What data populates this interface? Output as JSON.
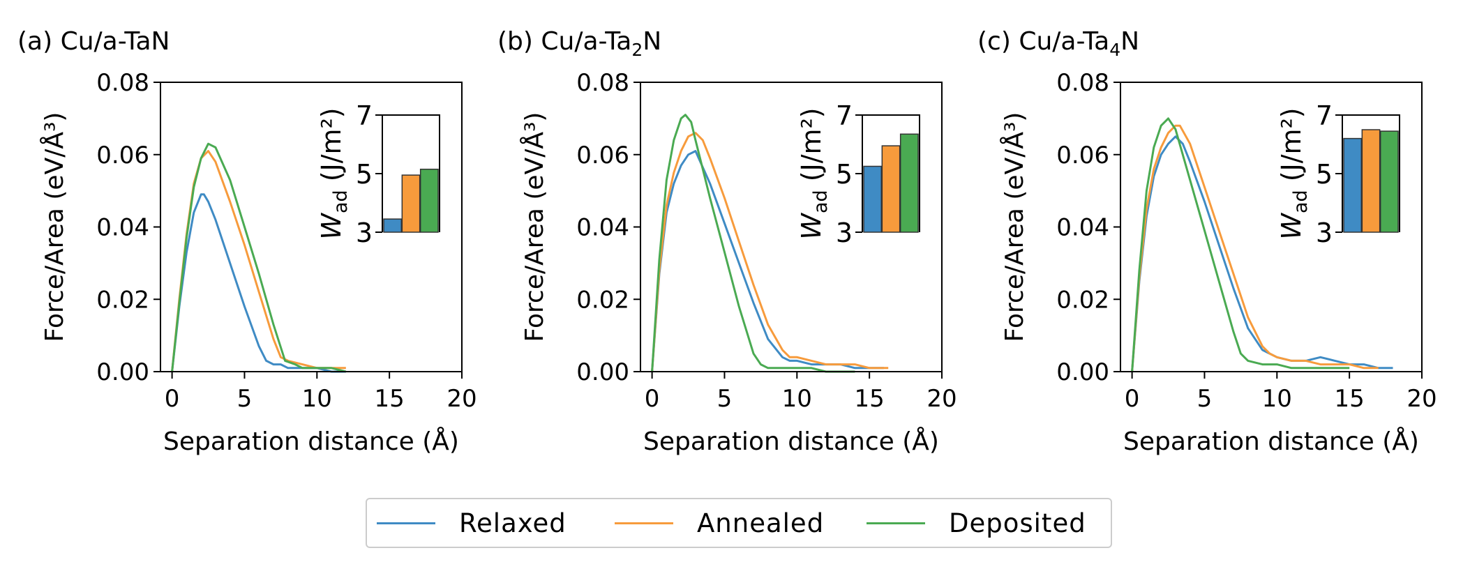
{
  "colors": {
    "relaxed": "#3f8bc4",
    "annealed": "#f79b3c",
    "deposited": "#4aaa52"
  },
  "legend": {
    "items": [
      {
        "label": "Relaxed",
        "color": "#3f8bc4"
      },
      {
        "label": "Annealed",
        "color": "#f79b3c"
      },
      {
        "label": "Deposited",
        "color": "#4aaa52"
      }
    ],
    "placement": "bottom-center"
  },
  "chart_data": [
    {
      "type": "line",
      "title": "(a) Cu/a-TaN",
      "title_parts": [
        "(a) Cu/a-TaN",
        ""
      ],
      "xlabel": "Separation distance (Å)",
      "ylabel": "Force/Area (eV/Å³)",
      "xlim": [
        -0.8,
        20
      ],
      "ylim": [
        0,
        0.08
      ],
      "xticks": [
        0,
        5,
        10,
        15,
        20
      ],
      "yticks": [
        0.0,
        0.02,
        0.04,
        0.06,
        0.08
      ],
      "ytick_labels": [
        "0.00",
        "0.02",
        "0.04",
        "0.06",
        "0.08"
      ],
      "series": [
        {
          "name": "Relaxed",
          "color": "#3f8bc4",
          "x": [
            0,
            0.5,
            1.0,
            1.5,
            2.0,
            2.2,
            2.5,
            3.0,
            4.0,
            5.0,
            6.0,
            6.5,
            7.0,
            7.5,
            8.0,
            9.0,
            10.0,
            11.0,
            12.0
          ],
          "y": [
            0.0,
            0.018,
            0.033,
            0.044,
            0.049,
            0.049,
            0.047,
            0.042,
            0.03,
            0.018,
            0.007,
            0.003,
            0.002,
            0.002,
            0.001,
            0.001,
            0.001,
            0.0,
            0.0
          ]
        },
        {
          "name": "Annealed",
          "color": "#f79b3c",
          "x": [
            0,
            0.5,
            1.0,
            1.5,
            2.0,
            2.5,
            3.0,
            4.0,
            5.0,
            6.0,
            7.0,
            7.5,
            8.0,
            9.0,
            10.0,
            11.0,
            12.0
          ],
          "y": [
            0.0,
            0.02,
            0.038,
            0.052,
            0.059,
            0.061,
            0.058,
            0.047,
            0.035,
            0.022,
            0.009,
            0.004,
            0.003,
            0.002,
            0.001,
            0.001,
            0.001
          ]
        },
        {
          "name": "Deposited",
          "color": "#4aaa52",
          "x": [
            0,
            0.5,
            1.0,
            1.5,
            2.0,
            2.5,
            3.0,
            4.0,
            5.0,
            6.0,
            7.0,
            7.8,
            8.5,
            9.0,
            10.0,
            11.0,
            12.0
          ],
          "y": [
            0.0,
            0.019,
            0.037,
            0.051,
            0.059,
            0.063,
            0.062,
            0.053,
            0.04,
            0.027,
            0.013,
            0.003,
            0.002,
            0.001,
            0.001,
            0.001,
            0.0
          ]
        }
      ],
      "inset": {
        "type": "bar",
        "ylabel_main": "W",
        "ylabel_sub": "ad",
        "ylabel_unit": " (J/m²)",
        "ylim": [
          3,
          7
        ],
        "yticks": [
          3,
          5,
          7
        ],
        "categories": [
          "Relaxed",
          "Annealed",
          "Deposited"
        ],
        "values": [
          3.45,
          4.95,
          5.15
        ]
      }
    },
    {
      "type": "line",
      "title": "(b) Cu/a-Ta",
      "title_parts": [
        "(b) Cu/a-Ta",
        "2",
        "N"
      ],
      "xlabel": "Separation distance (Å)",
      "ylabel": "Force/Area (eV/Å³)",
      "xlim": [
        -0.8,
        20
      ],
      "ylim": [
        0,
        0.08
      ],
      "xticks": [
        0,
        5,
        10,
        15,
        20
      ],
      "yticks": [
        0.0,
        0.02,
        0.04,
        0.06,
        0.08
      ],
      "ytick_labels": [
        "0.00",
        "0.02",
        "0.04",
        "0.06",
        "0.08"
      ],
      "series": [
        {
          "name": "Relaxed",
          "color": "#3f8bc4",
          "x": [
            0,
            0.5,
            1.0,
            1.5,
            2.0,
            2.5,
            3.0,
            4.0,
            5.0,
            6.0,
            7.0,
            8.0,
            9.0,
            9.5,
            10.0,
            11.0,
            12.0,
            13.0,
            14.0,
            15.0,
            16.0
          ],
          "y": [
            0.0,
            0.027,
            0.044,
            0.052,
            0.057,
            0.06,
            0.061,
            0.052,
            0.041,
            0.03,
            0.019,
            0.009,
            0.004,
            0.003,
            0.003,
            0.002,
            0.002,
            0.002,
            0.001,
            0.001,
            0.001
          ]
        },
        {
          "name": "Annealed",
          "color": "#f79b3c",
          "x": [
            0,
            0.5,
            1.0,
            1.5,
            2.0,
            2.5,
            3.0,
            3.5,
            4.0,
            5.0,
            6.0,
            7.0,
            8.0,
            9.0,
            9.5,
            10.0,
            11.0,
            12.0,
            13.0,
            14.0,
            15.0,
            16.3
          ],
          "y": [
            0.0,
            0.028,
            0.046,
            0.055,
            0.061,
            0.065,
            0.066,
            0.064,
            0.059,
            0.048,
            0.036,
            0.024,
            0.013,
            0.006,
            0.004,
            0.004,
            0.003,
            0.002,
            0.002,
            0.002,
            0.001,
            0.001
          ]
        },
        {
          "name": "Deposited",
          "color": "#4aaa52",
          "x": [
            0,
            0.5,
            1.0,
            1.5,
            2.0,
            2.3,
            2.7,
            3.0,
            4.0,
            5.0,
            6.0,
            7.0,
            7.5,
            8.0,
            9.0,
            10.0,
            11.0,
            12.0,
            13.0,
            14.0
          ],
          "y": [
            0.0,
            0.031,
            0.053,
            0.064,
            0.07,
            0.071,
            0.069,
            0.064,
            0.048,
            0.033,
            0.018,
            0.005,
            0.002,
            0.001,
            0.001,
            0.001,
            0.001,
            0.0,
            0.0,
            0.0
          ]
        }
      ],
      "inset": {
        "type": "bar",
        "ylabel_main": "W",
        "ylabel_sub": "ad",
        "ylabel_unit": " (J/m²)",
        "ylim": [
          3,
          7
        ],
        "yticks": [
          3,
          5,
          7
        ],
        "categories": [
          "Relaxed",
          "Annealed",
          "Deposited"
        ],
        "values": [
          5.25,
          5.95,
          6.35
        ]
      }
    },
    {
      "type": "line",
      "title": "(c) Cu/a-Ta",
      "title_parts": [
        "(c) Cu/a-Ta",
        "4",
        "N"
      ],
      "xlabel": "Separation distance (Å)",
      "ylabel": "Force/Area (eV/Å³)",
      "xlim": [
        -0.8,
        20
      ],
      "ylim": [
        0,
        0.08
      ],
      "xticks": [
        0,
        5,
        10,
        15,
        20
      ],
      "yticks": [
        0.0,
        0.02,
        0.04,
        0.06,
        0.08
      ],
      "ytick_labels": [
        "0.00",
        "0.02",
        "0.04",
        "0.06",
        "0.08"
      ],
      "series": [
        {
          "name": "Relaxed",
          "color": "#3f8bc4",
          "x": [
            0,
            0.5,
            1.0,
            1.5,
            2.0,
            2.5,
            3.0,
            3.5,
            4.0,
            5.0,
            6.0,
            7.0,
            8.0,
            9.0,
            9.5,
            10.0,
            11.0,
            12.0,
            13.0,
            14.0,
            15.0,
            16.0,
            17.0,
            18.0
          ],
          "y": [
            0.0,
            0.025,
            0.043,
            0.054,
            0.06,
            0.063,
            0.065,
            0.063,
            0.058,
            0.047,
            0.035,
            0.023,
            0.012,
            0.006,
            0.005,
            0.004,
            0.003,
            0.003,
            0.004,
            0.003,
            0.002,
            0.002,
            0.001,
            0.001
          ]
        },
        {
          "name": "Annealed",
          "color": "#f79b3c",
          "x": [
            0,
            0.5,
            1.0,
            1.5,
            2.0,
            2.5,
            3.0,
            3.3,
            4.0,
            5.0,
            6.0,
            7.0,
            8.0,
            9.0,
            9.5,
            10.0,
            11.0,
            12.0,
            13.0,
            14.0,
            15.0,
            16.0,
            17.0
          ],
          "y": [
            0.0,
            0.026,
            0.045,
            0.056,
            0.062,
            0.066,
            0.068,
            0.068,
            0.063,
            0.051,
            0.039,
            0.027,
            0.015,
            0.007,
            0.005,
            0.004,
            0.003,
            0.003,
            0.002,
            0.002,
            0.002,
            0.001,
            0.001
          ]
        },
        {
          "name": "Deposited",
          "color": "#4aaa52",
          "x": [
            0,
            0.5,
            1.0,
            1.5,
            2.0,
            2.5,
            3.0,
            4.0,
            5.0,
            6.0,
            7.0,
            7.5,
            8.0,
            9.0,
            10.0,
            11.0,
            12.0,
            13.0,
            14.0,
            15.0
          ],
          "y": [
            0.0,
            0.028,
            0.05,
            0.062,
            0.068,
            0.07,
            0.067,
            0.053,
            0.039,
            0.025,
            0.011,
            0.005,
            0.003,
            0.002,
            0.002,
            0.001,
            0.001,
            0.001,
            0.001,
            0.001
          ]
        }
      ],
      "inset": {
        "type": "bar",
        "ylabel_main": "W",
        "ylabel_sub": "ad",
        "ylabel_unit": " (J/m²)",
        "ylim": [
          3,
          7
        ],
        "yticks": [
          3,
          5,
          7
        ],
        "categories": [
          "Relaxed",
          "Annealed",
          "Deposited"
        ],
        "values": [
          6.2,
          6.5,
          6.45
        ]
      }
    }
  ]
}
